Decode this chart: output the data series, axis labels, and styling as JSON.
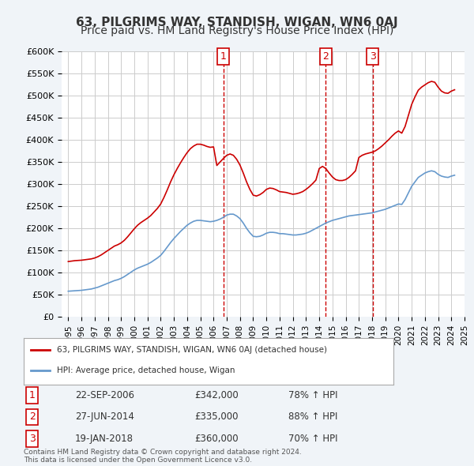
{
  "title": "63, PILGRIMS WAY, STANDISH, WIGAN, WN6 0AJ",
  "subtitle": "Price paid vs. HM Land Registry's House Price Index (HPI)",
  "ylabel": "",
  "xlabel": "",
  "ylim": [
    0,
    600000
  ],
  "yticks": [
    0,
    50000,
    100000,
    150000,
    200000,
    250000,
    300000,
    350000,
    400000,
    450000,
    500000,
    550000,
    600000
  ],
  "ytick_labels": [
    "£0",
    "£50K",
    "£100K",
    "£150K",
    "£200K",
    "£250K",
    "£300K",
    "£350K",
    "£400K",
    "£450K",
    "£500K",
    "£550K",
    "£600K"
  ],
  "background_color": "#f0f4f8",
  "plot_background": "#ffffff",
  "grid_color": "#cccccc",
  "title_fontsize": 11,
  "subtitle_fontsize": 10,
  "red_color": "#cc0000",
  "blue_color": "#6699cc",
  "sale1": {
    "date": "22-SEP-2006",
    "price": 342000,
    "pct": "78%",
    "x": 2006.73
  },
  "sale2": {
    "date": "27-JUN-2014",
    "price": 335000,
    "pct": "88%",
    "x": 2014.49
  },
  "sale3": {
    "date": "19-JAN-2018",
    "price": 360000,
    "pct": "70%",
    "x": 2018.05
  },
  "legend_label_red": "63, PILGRIMS WAY, STANDISH, WIGAN, WN6 0AJ (detached house)",
  "legend_label_blue": "HPI: Average price, detached house, Wigan",
  "footer": "Contains HM Land Registry data © Crown copyright and database right 2024.\nThis data is licensed under the Open Government Licence v3.0.",
  "hpi_data": {
    "years": [
      1995.0,
      1995.25,
      1995.5,
      1995.75,
      1996.0,
      1996.25,
      1996.5,
      1996.75,
      1997.0,
      1997.25,
      1997.5,
      1997.75,
      1998.0,
      1998.25,
      1998.5,
      1998.75,
      1999.0,
      1999.25,
      1999.5,
      1999.75,
      2000.0,
      2000.25,
      2000.5,
      2000.75,
      2001.0,
      2001.25,
      2001.5,
      2001.75,
      2002.0,
      2002.25,
      2002.5,
      2002.75,
      2003.0,
      2003.25,
      2003.5,
      2003.75,
      2004.0,
      2004.25,
      2004.5,
      2004.75,
      2005.0,
      2005.25,
      2005.5,
      2005.75,
      2006.0,
      2006.25,
      2006.5,
      2006.75,
      2007.0,
      2007.25,
      2007.5,
      2007.75,
      2008.0,
      2008.25,
      2008.5,
      2008.75,
      2009.0,
      2009.25,
      2009.5,
      2009.75,
      2010.0,
      2010.25,
      2010.5,
      2010.75,
      2011.0,
      2011.25,
      2011.5,
      2011.75,
      2012.0,
      2012.25,
      2012.5,
      2012.75,
      2013.0,
      2013.25,
      2013.5,
      2013.75,
      2014.0,
      2014.25,
      2014.5,
      2014.75,
      2015.0,
      2015.25,
      2015.5,
      2015.75,
      2016.0,
      2016.25,
      2016.5,
      2016.75,
      2017.0,
      2017.25,
      2017.5,
      2017.75,
      2018.0,
      2018.25,
      2018.5,
      2018.75,
      2019.0,
      2019.25,
      2019.5,
      2019.75,
      2020.0,
      2020.25,
      2020.5,
      2020.75,
      2021.0,
      2021.25,
      2021.5,
      2021.75,
      2022.0,
      2022.25,
      2022.5,
      2022.75,
      2023.0,
      2023.25,
      2023.5,
      2023.75,
      2024.0,
      2024.25
    ],
    "values": [
      58000,
      58500,
      59000,
      59500,
      60000,
      61000,
      62000,
      63000,
      65000,
      67000,
      70000,
      73000,
      76000,
      79000,
      82000,
      84000,
      87000,
      91000,
      96000,
      101000,
      106000,
      110000,
      113000,
      116000,
      119000,
      123000,
      128000,
      133000,
      139000,
      148000,
      158000,
      168000,
      177000,
      185000,
      193000,
      200000,
      207000,
      212000,
      216000,
      218000,
      218000,
      217000,
      216000,
      215000,
      216000,
      218000,
      221000,
      225000,
      230000,
      232000,
      232000,
      228000,
      222000,
      212000,
      200000,
      190000,
      182000,
      181000,
      182000,
      185000,
      189000,
      191000,
      191000,
      190000,
      188000,
      188000,
      187000,
      186000,
      185000,
      185000,
      186000,
      187000,
      189000,
      192000,
      196000,
      200000,
      204000,
      208000,
      212000,
      215000,
      218000,
      220000,
      222000,
      224000,
      226000,
      228000,
      229000,
      230000,
      231000,
      232000,
      233000,
      234000,
      235000,
      237000,
      239000,
      241000,
      243000,
      246000,
      249000,
      252000,
      255000,
      254000,
      265000,
      280000,
      295000,
      305000,
      315000,
      320000,
      325000,
      328000,
      330000,
      328000,
      322000,
      318000,
      316000,
      315000,
      318000,
      320000
    ],
    "red_values": [
      125000,
      126000,
      127000,
      127500,
      128000,
      129000,
      130000,
      131000,
      133000,
      136000,
      140000,
      145000,
      150000,
      155000,
      160000,
      163000,
      167000,
      173000,
      181000,
      190000,
      199000,
      207000,
      213000,
      218000,
      223000,
      229000,
      237000,
      245000,
      255000,
      270000,
      287000,
      305000,
      321000,
      335000,
      348000,
      360000,
      371000,
      380000,
      386000,
      390000,
      390000,
      388000,
      385000,
      383000,
      384000,
      342000,
      350000,
      358000,
      365000,
      368000,
      365000,
      356000,
      343000,
      325000,
      305000,
      288000,
      275000,
      273000,
      276000,
      281000,
      288000,
      291000,
      290000,
      287000,
      283000,
      282000,
      281000,
      279000,
      277000,
      278000,
      280000,
      283000,
      288000,
      294000,
      301000,
      309000,
      335000,
      340000,
      335000,
      325000,
      316000,
      310000,
      308000,
      308000,
      310000,
      315000,
      322000,
      330000,
      360000,
      365000,
      368000,
      370000,
      372000,
      375000,
      380000,
      386000,
      393000,
      400000,
      408000,
      415000,
      420000,
      415000,
      430000,
      455000,
      480000,
      497000,
      512000,
      519000,
      524000,
      529000,
      532000,
      530000,
      519000,
      510000,
      506000,
      505000,
      510000,
      513000
    ]
  }
}
